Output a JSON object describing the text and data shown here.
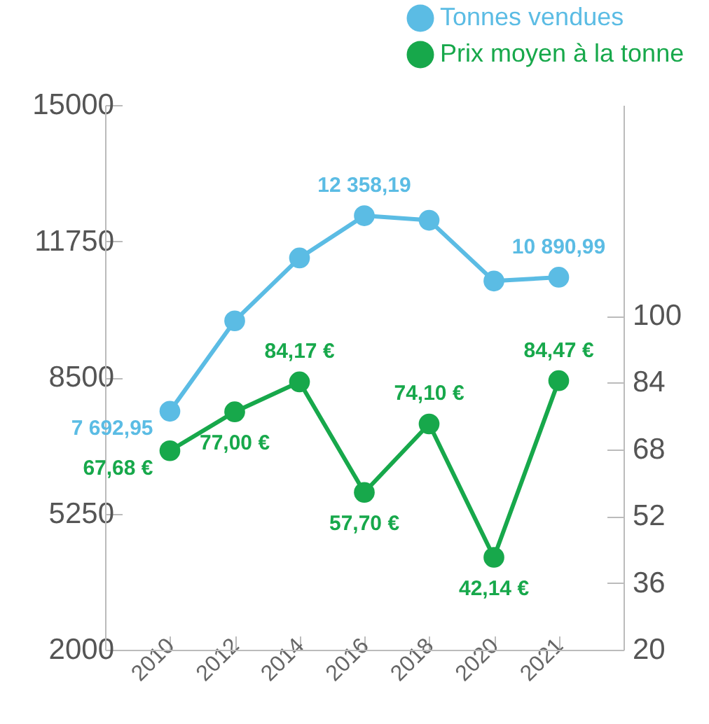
{
  "chart_data": {
    "type": "line",
    "categories": [
      "2010",
      "2012",
      "2014",
      "2016",
      "2018",
      "2020",
      "2021"
    ],
    "series": [
      {
        "name": "Tonnes vendues",
        "color": "#5bbce4",
        "values": [
          7692.95,
          9850,
          11350,
          12358.19,
          12250,
          10800,
          10890.99
        ],
        "value_labels": [
          "7 692,95",
          null,
          null,
          "12 358,19",
          null,
          null,
          "10 890,99"
        ]
      },
      {
        "name": "Prix moyen à la tonne",
        "color": "#17a84b",
        "axis": "y2",
        "values": [
          67.68,
          77.0,
          84.17,
          57.7,
          74.1,
          42.14,
          84.47
        ],
        "value_labels": [
          "67,68 €",
          "77,00 €",
          "84,17 €",
          "57,70 €",
          "74,10 €",
          "42,14 €",
          "84,47 €"
        ]
      }
    ],
    "ylim": [
      2000,
      15000
    ],
    "yticks": [
      2000,
      5250,
      8500,
      11750,
      15000
    ],
    "y2lim": [
      20,
      150.5
    ],
    "y2ticks": [
      20,
      36,
      52,
      68,
      84,
      100
    ],
    "legend": "top right",
    "marker": "circle",
    "grid": false
  }
}
